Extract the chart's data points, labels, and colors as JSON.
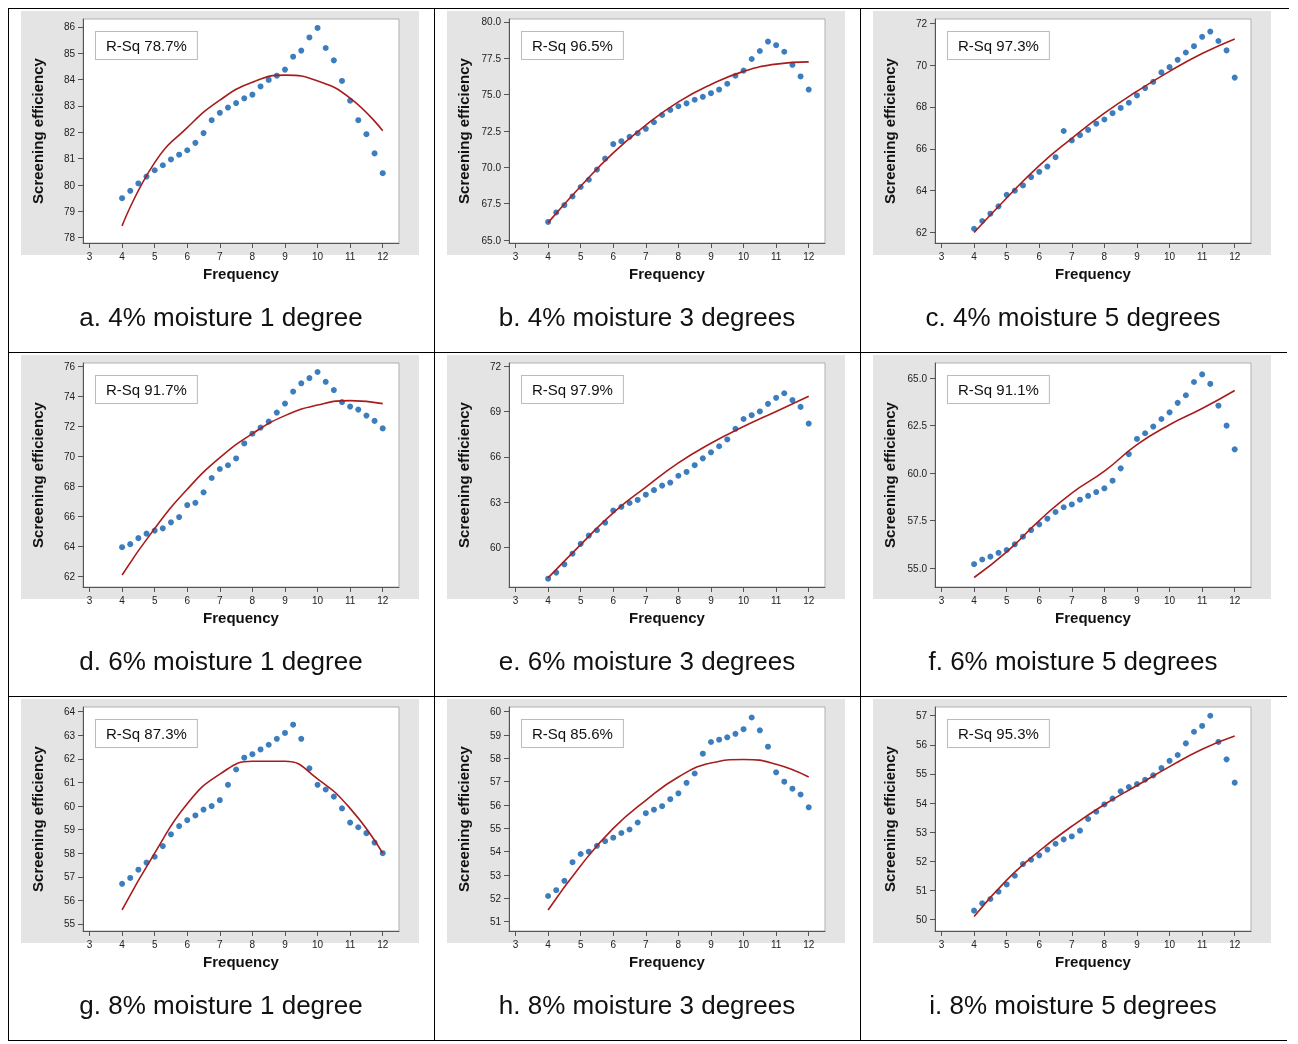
{
  "chart_data": [
    {
      "type": "scatter",
      "title": "a. 4% moisture 1 degree",
      "xlabel": "Frequency",
      "ylabel": "Screening efficiency",
      "annotations": [
        "R-Sq 78.7%"
      ],
      "xlim": [
        2.8,
        12.5
      ],
      "xticks": [
        3,
        4,
        5,
        6,
        7,
        8,
        9,
        10,
        11,
        12
      ],
      "ylim": [
        77.8,
        86.3
      ],
      "yticks": [
        78,
        79,
        80,
        81,
        82,
        83,
        84,
        85,
        86
      ],
      "x": [
        4,
        4.25,
        4.5,
        4.75,
        5,
        5.25,
        5.5,
        5.75,
        6,
        6.25,
        6.5,
        6.75,
        7,
        7.25,
        7.5,
        7.75,
        8,
        8.25,
        8.5,
        8.75,
        9,
        9.25,
        9.5,
        9.75,
        10,
        10.25,
        10.5,
        10.75,
        11,
        11.25,
        11.5,
        11.75,
        12
      ],
      "series": [
        {
          "marker": "circle",
          "color": "#0b5cad",
          "values": [
            79.5,
            79.78,
            80.06,
            80.32,
            80.56,
            80.75,
            80.97,
            81.15,
            81.32,
            81.6,
            81.97,
            82.46,
            82.74,
            82.94,
            83.11,
            83.29,
            83.43,
            83.74,
            83.99,
            84.15,
            84.38,
            84.87,
            85.1,
            85.6,
            85.96,
            85.2,
            84.73,
            83.95,
            83.2,
            82.46,
            81.93,
            81.2,
            80.45
          ]
        },
        {
          "type": "line",
          "marker": "none",
          "color": "#a81c1c",
          "x": [
            4,
            5,
            6,
            7,
            8,
            9,
            10,
            11,
            12
          ],
          "values": [
            78.45,
            80.85,
            82.18,
            83.22,
            83.9,
            84.17,
            83.95,
            83.3,
            82.06
          ]
        }
      ]
    },
    {
      "type": "scatter",
      "title": "b. 4% moisture 3 degrees",
      "xlabel": "Frequency",
      "ylabel": "Screening efficiency",
      "annotations": [
        "R-Sq 96.5%"
      ],
      "xlim": [
        2.8,
        12.5
      ],
      "xticks": [
        3,
        4,
        5,
        6,
        7,
        8,
        9,
        10,
        11,
        12
      ],
      "ylim": [
        64.8,
        80.2
      ],
      "yticks": [
        {
          "value": 65,
          "label": "65.0"
        },
        {
          "value": 67.5,
          "label": "67.5"
        },
        {
          "value": 70,
          "label": "70.0"
        },
        {
          "value": 72.5,
          "label": "72.5"
        },
        {
          "value": 75,
          "label": "75.0"
        },
        {
          "value": 77.5,
          "label": "77.5"
        },
        {
          "value": 80,
          "label": "80.0"
        }
      ],
      "x": [
        4,
        4.25,
        4.5,
        4.75,
        5,
        5.25,
        5.5,
        5.75,
        6,
        6.25,
        6.5,
        6.75,
        7,
        7.25,
        7.5,
        7.75,
        8,
        8.25,
        8.5,
        8.75,
        9,
        9.25,
        9.5,
        9.75,
        10,
        10.25,
        10.5,
        10.75,
        11,
        11.25,
        11.5,
        11.75,
        12
      ],
      "series": [
        {
          "marker": "circle",
          "color": "#0b5cad",
          "values": [
            66.25,
            66.9,
            67.4,
            68.0,
            68.65,
            69.15,
            69.85,
            70.6,
            71.6,
            71.8,
            72.1,
            72.35,
            72.65,
            73.1,
            73.6,
            73.95,
            74.2,
            74.4,
            74.65,
            74.85,
            75.1,
            75.35,
            75.75,
            76.3,
            76.65,
            77.45,
            78.0,
            78.65,
            78.4,
            77.95,
            77.05,
            76.25,
            75.35
          ]
        },
        {
          "type": "line",
          "marker": "none",
          "color": "#a81c1c",
          "x": [
            4,
            5,
            6,
            7,
            8,
            9,
            10,
            11,
            12
          ],
          "values": [
            66.2,
            68.7,
            71.0,
            72.9,
            74.5,
            75.7,
            76.6,
            77.1,
            77.25
          ]
        }
      ]
    },
    {
      "type": "scatter",
      "title": "c. 4% moisture 5 degrees",
      "xlabel": "Frequency",
      "ylabel": "Screening efficiency",
      "annotations": [
        "R-Sq 97.3%"
      ],
      "xlim": [
        2.8,
        12.5
      ],
      "xticks": [
        3,
        4,
        5,
        6,
        7,
        8,
        9,
        10,
        11,
        12
      ],
      "ylim": [
        61.5,
        72.2
      ],
      "yticks": [
        62,
        64,
        66,
        68,
        70,
        72
      ],
      "x": [
        4,
        4.25,
        4.5,
        4.75,
        5,
        5.25,
        5.5,
        5.75,
        6,
        6.25,
        6.5,
        6.75,
        7,
        7.25,
        7.5,
        7.75,
        8,
        8.25,
        8.5,
        8.75,
        9,
        9.25,
        9.5,
        9.75,
        10,
        10.25,
        10.5,
        10.75,
        11,
        11.25,
        11.5,
        11.75,
        12
      ],
      "series": [
        {
          "marker": "circle",
          "color": "#0b5cad",
          "values": [
            62.18,
            62.55,
            62.9,
            63.25,
            63.8,
            64.0,
            64.25,
            64.65,
            64.9,
            65.15,
            65.6,
            66.85,
            66.4,
            66.65,
            66.9,
            67.2,
            67.4,
            67.7,
            67.95,
            68.2,
            68.55,
            68.9,
            69.2,
            69.65,
            69.9,
            70.25,
            70.6,
            70.9,
            71.35,
            71.6,
            71.15,
            70.7,
            69.4
          ]
        },
        {
          "type": "line",
          "marker": "none",
          "color": "#a81c1c",
          "x": [
            4,
            5,
            6,
            7,
            8,
            9,
            10,
            11,
            12
          ],
          "values": [
            62.0,
            63.65,
            65.2,
            66.5,
            67.7,
            68.75,
            69.7,
            70.55,
            71.25
          ]
        }
      ]
    },
    {
      "type": "scatter",
      "title": "d. 6% moisture 1 degree",
      "xlabel": "Frequency",
      "ylabel": "Screening efficiency",
      "annotations": [
        "R-Sq 91.7%"
      ],
      "xlim": [
        2.8,
        12.5
      ],
      "xticks": [
        3,
        4,
        5,
        6,
        7,
        8,
        9,
        10,
        11,
        12
      ],
      "ylim": [
        61.3,
        76.2
      ],
      "yticks": [
        62,
        64,
        66,
        68,
        70,
        72,
        74,
        76
      ],
      "x": [
        4,
        4.25,
        4.5,
        4.75,
        5,
        5.25,
        5.5,
        5.75,
        6,
        6.25,
        6.5,
        6.75,
        7,
        7.25,
        7.5,
        7.75,
        8,
        8.25,
        8.5,
        8.75,
        9,
        9.25,
        9.5,
        9.75,
        10,
        10.25,
        10.5,
        10.75,
        11,
        11.25,
        11.5,
        11.75,
        12
      ],
      "series": [
        {
          "marker": "circle",
          "color": "#0b5cad",
          "values": [
            63.95,
            64.15,
            64.55,
            64.85,
            65.05,
            65.2,
            65.6,
            65.95,
            66.75,
            66.9,
            67.6,
            68.55,
            69.15,
            69.4,
            69.85,
            70.85,
            71.5,
            71.9,
            72.3,
            72.9,
            73.5,
            74.3,
            74.85,
            75.2,
            75.6,
            74.95,
            74.4,
            73.6,
            73.3,
            73.1,
            72.7,
            72.35,
            71.85
          ]
        },
        {
          "type": "line",
          "marker": "none",
          "color": "#a81c1c",
          "x": [
            4,
            5,
            6,
            7,
            8,
            9,
            10,
            11,
            12
          ],
          "values": [
            62.1,
            65.2,
            67.8,
            69.9,
            71.5,
            72.7,
            73.4,
            73.7,
            73.5
          ]
        }
      ]
    },
    {
      "type": "scatter",
      "title": "e. 6% moisture 3 degrees",
      "xlabel": "Frequency",
      "ylabel": "Screening efficiency",
      "annotations": [
        "R-Sq 97.9%"
      ],
      "xlim": [
        2.8,
        12.5
      ],
      "xticks": [
        3,
        4,
        5,
        6,
        7,
        8,
        9,
        10,
        11,
        12
      ],
      "ylim": [
        57.4,
        72.2
      ],
      "yticks": [
        60,
        63,
        66,
        69,
        72
      ],
      "x": [
        4,
        4.25,
        4.5,
        4.75,
        5,
        5.25,
        5.5,
        5.75,
        6,
        6.25,
        6.5,
        6.75,
        7,
        7.25,
        7.5,
        7.75,
        8,
        8.25,
        8.5,
        8.75,
        9,
        9.25,
        9.5,
        9.75,
        10,
        10.25,
        10.5,
        10.75,
        11,
        11.25,
        11.5,
        11.75,
        12
      ],
      "series": [
        {
          "marker": "circle",
          "color": "#0b5cad",
          "values": [
            57.95,
            58.35,
            58.9,
            59.6,
            60.25,
            60.8,
            61.15,
            61.65,
            62.45,
            62.7,
            62.95,
            63.15,
            63.5,
            63.8,
            64.1,
            64.3,
            64.75,
            65.0,
            65.45,
            65.9,
            66.3,
            66.7,
            67.15,
            67.85,
            68.5,
            68.75,
            69.0,
            69.5,
            69.9,
            70.2,
            69.75,
            69.3,
            68.2
          ]
        },
        {
          "type": "line",
          "marker": "none",
          "color": "#a81c1c",
          "x": [
            4,
            5,
            6,
            7,
            8,
            9,
            10,
            11,
            12
          ],
          "values": [
            58.0,
            60.2,
            62.3,
            64.0,
            65.6,
            66.9,
            68.0,
            69.0,
            70.0
          ]
        }
      ]
    },
    {
      "type": "scatter",
      "title": "f. 6% moisture 5 degrees",
      "xlabel": "Frequency",
      "ylabel": "Screening efficiency",
      "annotations": [
        "R-Sq 91.1%"
      ],
      "xlim": [
        2.8,
        12.5
      ],
      "xticks": [
        3,
        4,
        5,
        6,
        7,
        8,
        9,
        10,
        11,
        12
      ],
      "ylim": [
        54.0,
        65.8
      ],
      "yticks": [
        {
          "value": 55,
          "label": "55.0"
        },
        {
          "value": 57.5,
          "label": "57.5"
        },
        {
          "value": 60,
          "label": "60.0"
        },
        {
          "value": 62.5,
          "label": "62.5"
        },
        {
          "value": 65,
          "label": "65.0"
        }
      ],
      "x": [
        4,
        4.25,
        4.5,
        4.75,
        5,
        5.25,
        5.5,
        5.75,
        6,
        6.25,
        6.5,
        6.75,
        7,
        7.25,
        7.5,
        7.75,
        8,
        8.25,
        8.5,
        8.75,
        9,
        9.25,
        9.5,
        9.75,
        10,
        10.25,
        10.5,
        10.75,
        11,
        11.25,
        11.5,
        11.75,
        12
      ],
      "series": [
        {
          "marker": "circle",
          "color": "#0b5cad",
          "values": [
            55.2,
            55.45,
            55.6,
            55.8,
            55.95,
            56.25,
            56.65,
            57.0,
            57.3,
            57.6,
            57.95,
            58.2,
            58.35,
            58.6,
            58.8,
            59.0,
            59.2,
            59.6,
            60.25,
            61.0,
            61.8,
            62.1,
            62.45,
            62.85,
            63.2,
            63.7,
            64.1,
            64.8,
            65.2,
            64.7,
            63.55,
            62.5,
            61.25
          ]
        },
        {
          "type": "line",
          "marker": "none",
          "color": "#a81c1c",
          "x": [
            4,
            5,
            6,
            7,
            8,
            9,
            10,
            11,
            12
          ],
          "values": [
            54.5,
            55.85,
            57.5,
            58.95,
            60.1,
            61.5,
            62.55,
            63.4,
            64.35
          ]
        }
      ]
    },
    {
      "type": "scatter",
      "title": "g. 8% moisture 1 degree",
      "xlabel": "Frequency",
      "ylabel": "Screening efficiency",
      "annotations": [
        "R-Sq 87.3%"
      ],
      "xlim": [
        2.8,
        12.5
      ],
      "xticks": [
        3,
        4,
        5,
        6,
        7,
        8,
        9,
        10,
        11,
        12
      ],
      "ylim": [
        54.7,
        64.2
      ],
      "yticks": [
        55,
        56,
        57,
        58,
        59,
        60,
        61,
        62,
        63,
        64
      ],
      "x": [
        4,
        4.25,
        4.5,
        4.75,
        5,
        5.25,
        5.5,
        5.75,
        6,
        6.25,
        6.5,
        6.75,
        7,
        7.25,
        7.5,
        7.75,
        8,
        8.25,
        8.5,
        8.75,
        9,
        9.25,
        9.5,
        9.75,
        10,
        10.25,
        10.5,
        10.75,
        11,
        11.25,
        11.5,
        11.75,
        12
      ],
      "series": [
        {
          "marker": "circle",
          "color": "#0b5cad",
          "values": [
            56.7,
            56.95,
            57.3,
            57.6,
            57.85,
            58.3,
            58.8,
            59.15,
            59.4,
            59.6,
            59.85,
            60.0,
            60.25,
            60.9,
            61.55,
            62.05,
            62.2,
            62.4,
            62.6,
            62.85,
            63.1,
            63.45,
            62.85,
            61.6,
            60.9,
            60.7,
            60.4,
            59.9,
            59.3,
            59.1,
            58.85,
            58.45,
            58.0
          ]
        },
        {
          "type": "line",
          "marker": "none",
          "color": "#a81c1c",
          "x": [
            4,
            5,
            6,
            7,
            8,
            9,
            10,
            11,
            12
          ],
          "values": [
            55.6,
            58.0,
            60.1,
            61.35,
            61.9,
            61.9,
            61.15,
            59.9,
            58.0
          ]
        }
      ]
    },
    {
      "type": "scatter",
      "title": "h. 8% moisture 3 degrees",
      "xlabel": "Frequency",
      "ylabel": "Screening efficiency",
      "annotations": [
        "R-Sq 85.6%"
      ],
      "xlim": [
        2.8,
        12.5
      ],
      "xticks": [
        3,
        4,
        5,
        6,
        7,
        8,
        9,
        10,
        11,
        12
      ],
      "ylim": [
        50.6,
        60.2
      ],
      "yticks": [
        51,
        52,
        53,
        54,
        55,
        56,
        57,
        58,
        59,
        60
      ],
      "x": [
        4,
        4.25,
        4.5,
        4.75,
        5,
        5.25,
        5.5,
        5.75,
        6,
        6.25,
        6.5,
        6.75,
        7,
        7.25,
        7.5,
        7.75,
        8,
        8.25,
        8.5,
        8.75,
        9,
        9.25,
        9.5,
        9.75,
        10,
        10.25,
        10.5,
        10.75,
        11,
        11.25,
        11.5,
        11.75,
        12
      ],
      "series": [
        {
          "marker": "circle",
          "color": "#0b5cad",
          "values": [
            52.1,
            52.35,
            52.75,
            53.55,
            53.9,
            54.0,
            54.25,
            54.45,
            54.6,
            54.8,
            54.95,
            55.25,
            55.65,
            55.8,
            55.95,
            56.25,
            56.5,
            56.95,
            57.35,
            58.2,
            58.7,
            58.8,
            58.9,
            59.05,
            59.25,
            59.75,
            59.2,
            58.5,
            57.4,
            57.0,
            56.7,
            56.45,
            55.9
          ]
        },
        {
          "type": "line",
          "marker": "none",
          "color": "#a81c1c",
          "x": [
            4,
            5,
            6,
            7,
            8,
            9,
            10,
            11,
            12
          ],
          "values": [
            51.5,
            53.4,
            55.0,
            56.2,
            57.2,
            57.8,
            57.95,
            57.75,
            57.2
          ]
        }
      ]
    },
    {
      "type": "scatter",
      "title": "i. 8% moisture 5 degrees",
      "xlabel": "Frequency",
      "ylabel": "Screening efficiency",
      "annotations": [
        "R-Sq 95.3%"
      ],
      "xlim": [
        2.8,
        12.5
      ],
      "xticks": [
        3,
        4,
        5,
        6,
        7,
        8,
        9,
        10,
        11,
        12
      ],
      "ylim": [
        49.6,
        57.3
      ],
      "yticks": [
        50,
        51,
        52,
        53,
        54,
        55,
        56,
        57
      ],
      "x": [
        4,
        4.25,
        4.5,
        4.75,
        5,
        5.25,
        5.5,
        5.75,
        6,
        6.25,
        6.5,
        6.75,
        7,
        7.25,
        7.5,
        7.75,
        8,
        8.25,
        8.5,
        8.75,
        9,
        9.25,
        9.5,
        9.75,
        10,
        10.25,
        10.5,
        10.75,
        11,
        11.25,
        11.5,
        11.75,
        12
      ],
      "series": [
        {
          "marker": "circle",
          "color": "#0b5cad",
          "values": [
            50.3,
            50.55,
            50.7,
            50.95,
            51.2,
            51.5,
            51.9,
            52.05,
            52.2,
            52.4,
            52.6,
            52.75,
            52.85,
            53.05,
            53.45,
            53.7,
            53.95,
            54.15,
            54.4,
            54.55,
            54.65,
            54.8,
            54.95,
            55.2,
            55.45,
            55.65,
            56.05,
            56.45,
            56.65,
            57.0,
            56.1,
            55.5,
            54.7
          ]
        },
        {
          "type": "line",
          "marker": "none",
          "color": "#a81c1c",
          "x": [
            4,
            5,
            6,
            7,
            8,
            9,
            10,
            11,
            12
          ],
          "values": [
            50.1,
            51.35,
            52.35,
            53.2,
            53.95,
            54.6,
            55.25,
            55.85,
            56.3
          ]
        }
      ]
    }
  ]
}
